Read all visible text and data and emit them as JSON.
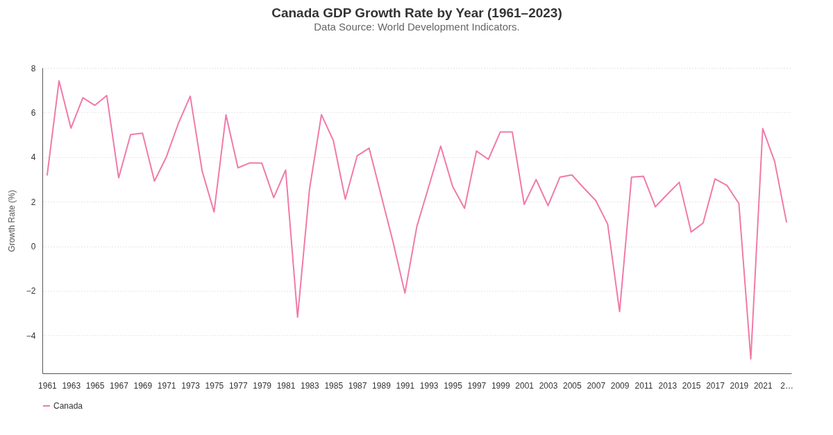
{
  "chart_data": {
    "type": "line",
    "title": "Canada GDP Growth Rate by Year (1961–2023)",
    "subtitle": "Data Source: World Development Indicators.",
    "ylabel": "Growth Rate (%)",
    "categories": [
      "1961",
      null,
      "1963",
      null,
      "1965",
      null,
      "1967",
      null,
      "1969",
      null,
      "1971",
      null,
      "1973",
      null,
      "1975",
      null,
      "1977",
      null,
      "1979",
      null,
      "1981",
      null,
      "1983",
      null,
      "1985",
      null,
      "1987",
      null,
      "1989",
      null,
      "1991",
      null,
      "1993",
      null,
      "1995",
      null,
      "1997",
      null,
      "1999",
      null,
      "2001",
      null,
      "2003",
      null,
      "2005",
      null,
      "2007",
      null,
      "2009",
      null,
      "2011",
      null,
      "2013",
      null,
      "2015",
      null,
      "2017",
      null,
      "2019",
      null,
      "2021",
      null,
      "2…"
    ],
    "series": [
      {
        "name": "Canada",
        "color": "#f07aa8",
        "values": [
          3.17,
          7.42,
          5.3,
          6.66,
          6.32,
          6.76,
          3.07,
          5.01,
          5.07,
          2.92,
          4.01,
          5.5,
          6.73,
          3.37,
          1.54,
          5.89,
          3.52,
          3.74,
          3.73,
          2.18,
          3.42,
          -3.18,
          2.56,
          5.9,
          4.74,
          2.11,
          4.06,
          4.4,
          2.3,
          0.2,
          -2.1,
          0.89,
          2.68,
          4.49,
          2.68,
          1.7,
          4.27,
          3.9,
          5.13,
          5.13,
          1.88,
          2.99,
          1.82,
          3.1,
          3.2,
          2.61,
          2.05,
          0.99,
          -2.93,
          3.1,
          3.14,
          1.77,
          2.33,
          2.87,
          0.64,
          1.04,
          3.02,
          2.73,
          1.92,
          -5.05,
          5.28,
          3.8,
          1.07
        ]
      }
    ],
    "ylim": [
      -5.7,
      8
    ],
    "yticks": [
      -4,
      -2,
      0,
      2,
      4,
      6,
      8
    ],
    "grid": "y",
    "legend": "bottom"
  }
}
